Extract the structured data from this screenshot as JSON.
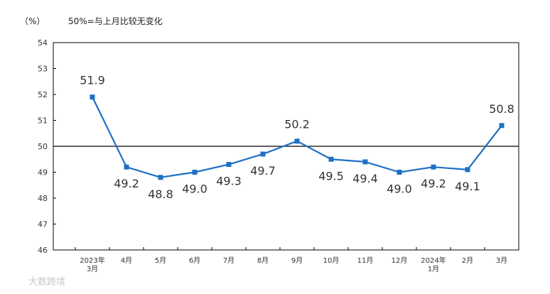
{
  "chart_data": {
    "type": "line",
    "unit_label": "（%）",
    "note": "50%=与上月比较无变化",
    "x": [
      [
        "2023年",
        "3月"
      ],
      [
        "4月"
      ],
      [
        "5月"
      ],
      [
        "6月"
      ],
      [
        "7月"
      ],
      [
        "8月"
      ],
      [
        "9月"
      ],
      [
        "10月"
      ],
      [
        "11月"
      ],
      [
        "12月"
      ],
      [
        "2024年",
        "1月"
      ],
      [
        "2月"
      ],
      [
        "3月"
      ]
    ],
    "series": [
      {
        "values": [
          51.9,
          49.2,
          48.8,
          49.0,
          49.3,
          49.7,
          50.2,
          49.5,
          49.4,
          49.0,
          49.2,
          49.1,
          50.8
        ],
        "labels": [
          "51.9",
          "49.2",
          "48.8",
          "49.0",
          "49.3",
          "49.7",
          "50.2",
          "49.5",
          "49.4",
          "49.0",
          "49.2",
          "49.1",
          "50.8"
        ],
        "label_position": [
          "above",
          "below",
          "below",
          "below",
          "below",
          "below",
          "above",
          "below",
          "below",
          "below",
          "below",
          "below",
          "above"
        ]
      }
    ],
    "yticks": [
      46,
      47,
      48,
      49,
      50,
      51,
      52,
      53,
      54
    ],
    "ylim": [
      46,
      54
    ],
    "reference_line": 50,
    "grid": false,
    "line_color": "#1f6fc6",
    "marker_color": "#1f6fc6"
  },
  "watermark": "大数跨境"
}
